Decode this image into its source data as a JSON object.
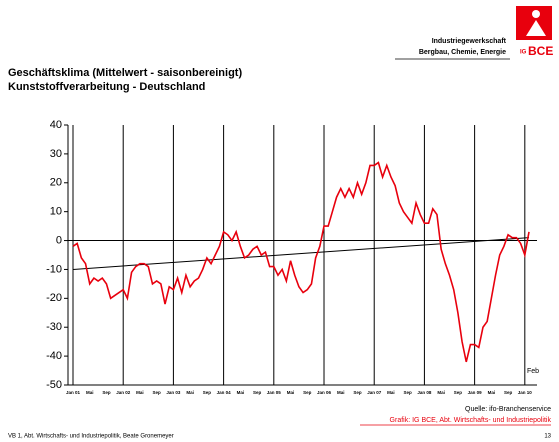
{
  "header": {
    "org_line1": "Industriegewerkschaft",
    "org_line2": "Bergbau, Chemie, Energie",
    "logo_small": "IG",
    "logo_large": "BCE"
  },
  "chart_data": {
    "type": "line",
    "title": "Geschäftsklima (Mittelwert - saisonbereinigt)",
    "subtitle": "Kunststoffverarbeitung   -   Deutschland",
    "categories": [
      "Jan 01",
      null,
      null,
      null,
      "Mai",
      null,
      null,
      null,
      "Sep",
      null,
      null,
      null,
      "Jan 02",
      null,
      null,
      null,
      "Mai",
      null,
      null,
      null,
      "Sep",
      null,
      null,
      null,
      "Jan 03",
      null,
      null,
      null,
      "Mai",
      null,
      null,
      null,
      "Sep",
      null,
      null,
      null,
      "Jan 04",
      null,
      null,
      null,
      "Mai",
      null,
      null,
      null,
      "Sep",
      null,
      null,
      null,
      "Jan 05",
      null,
      null,
      null,
      "Mai",
      null,
      null,
      null,
      "Sep",
      null,
      null,
      null,
      "Jan 06",
      null,
      null,
      null,
      "Mai",
      null,
      null,
      null,
      "Sep",
      null,
      null,
      null,
      "Jan 07",
      null,
      null,
      null,
      "Mai",
      null,
      null,
      null,
      "Sep",
      null,
      null,
      null,
      "Jan 08",
      null,
      null,
      null,
      "Mai",
      null,
      null,
      null,
      "Sep",
      null,
      null,
      null,
      "Jan 09",
      null,
      null,
      null,
      "Mai",
      null,
      null,
      null,
      "Sep",
      null,
      null,
      null,
      "Jan 10",
      "Feb"
    ],
    "series": [
      {
        "color": "#e8000d",
        "values": [
          -2,
          -1,
          -6,
          -8,
          -15,
          -13,
          -14,
          -13,
          -15,
          -20,
          -19,
          -18,
          -17,
          -20,
          -11,
          -9,
          -8,
          -8,
          -9,
          -15,
          -14,
          -15,
          -22,
          -16,
          -17,
          -13,
          -18,
          -12,
          -16,
          -14,
          -13,
          -10,
          -6,
          -8,
          -5,
          -2,
          3,
          2,
          0,
          3,
          -2,
          -6,
          -5,
          -3,
          -2,
          -5,
          -4,
          -9,
          -9,
          -12,
          -10,
          -14,
          -7,
          -12,
          -16,
          -18,
          -17,
          -15,
          -6,
          -2,
          5,
          5,
          10,
          15,
          18,
          15,
          18,
          15,
          20,
          16,
          20,
          26,
          26,
          27,
          22,
          26,
          22,
          19,
          13,
          10,
          8,
          6,
          13,
          9,
          6,
          6,
          11,
          9,
          -3,
          -8,
          -12,
          -17,
          -25,
          -35,
          -42,
          -36,
          -36,
          -37,
          -30,
          -28,
          -20,
          -12,
          -5,
          -2,
          2,
          1,
          1,
          -1,
          -5,
          3
        ]
      }
    ],
    "trend_values": [
      -10,
      1
    ],
    "trend_color": "#000000",
    "ylim": [
      -50,
      40
    ],
    "yticks": [
      -50,
      -40,
      -30,
      -20,
      -10,
      0,
      10,
      20,
      30,
      40
    ],
    "xgrid": true
  },
  "footer": {
    "source": "Quelle: ifo-Branchenservice",
    "credit": "Grafik: IG BCE, Abt. Wirtschafts- und Industriepolitik",
    "author": "VB 1, Abt. Wirtschafts- und Industriepolitik, Beate Gronemeyer",
    "page": "13"
  }
}
